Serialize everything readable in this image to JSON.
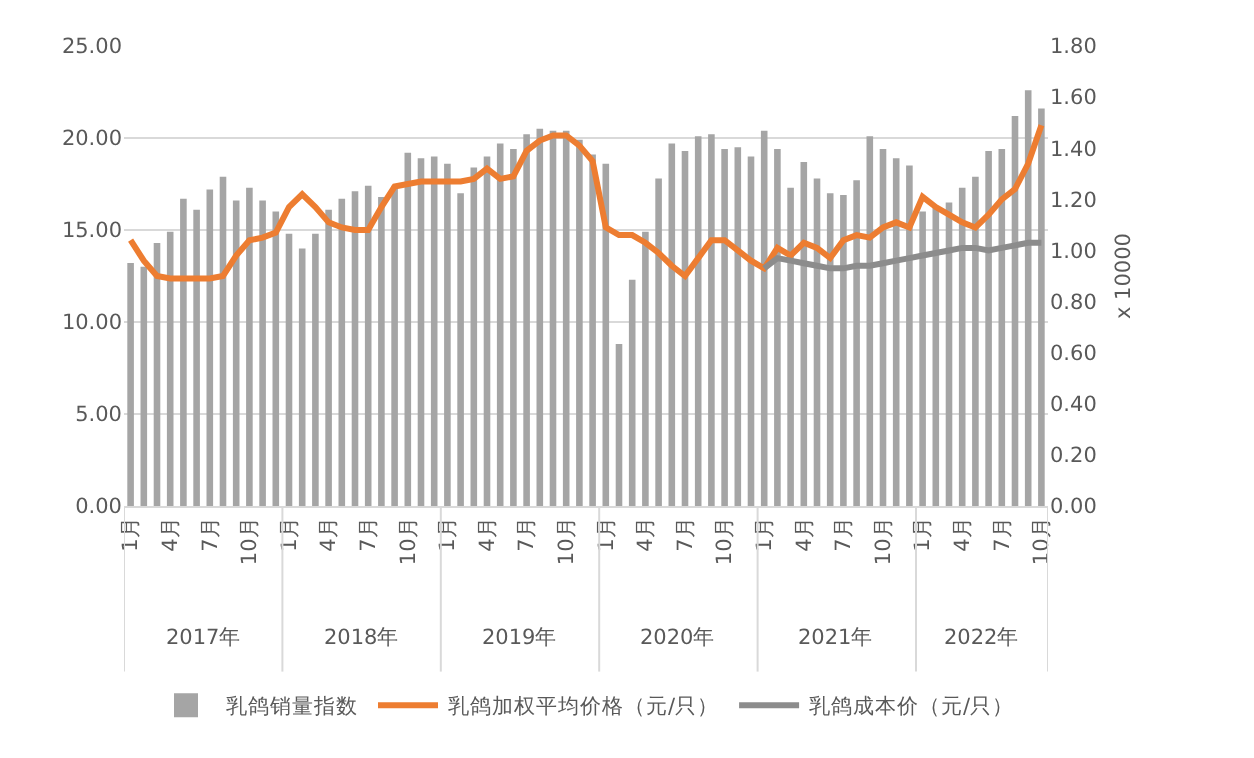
{
  "chart_data": {
    "type": "bar",
    "categories": [
      "1月",
      null,
      null,
      "4月",
      null,
      null,
      "7月",
      null,
      null,
      "10月",
      null,
      null,
      "1月",
      null,
      null,
      "4月",
      null,
      null,
      "7月",
      null,
      null,
      "10月",
      null,
      null,
      "1月",
      null,
      null,
      "4月",
      null,
      null,
      "7月",
      null,
      null,
      "10月",
      null,
      null,
      "1月",
      null,
      null,
      "4月",
      null,
      null,
      "7月",
      null,
      null,
      "10月",
      null,
      null,
      "1月",
      null,
      null,
      "4月",
      null,
      null,
      "7月",
      null,
      null,
      "10月",
      null,
      null,
      "1月",
      null,
      null,
      "4月",
      null,
      null,
      "7月",
      null,
      null,
      "10月"
    ],
    "annotations": [
      "2017年",
      "2018年",
      "2019年",
      "2020年",
      "2021年",
      "2022年"
    ],
    "y2label": "x 10000",
    "series": [
      {
        "name": "乳鸽销量指数",
        "color": "#a5a5a5",
        "values": [
          13.2,
          13.0,
          14.3,
          14.9,
          16.7,
          16.1,
          17.2,
          17.9,
          16.6,
          17.3,
          16.6,
          16.0,
          14.8,
          14.0,
          14.8,
          16.1,
          16.7,
          17.1,
          17.4,
          16.8,
          17.4,
          19.2,
          18.9,
          19.0,
          18.6,
          17.0,
          18.4,
          19.0,
          19.7,
          19.4,
          20.2,
          20.5,
          20.4,
          20.4,
          19.9,
          19.1,
          18.6,
          8.8,
          12.3,
          14.9,
          17.8,
          19.7,
          19.3,
          20.1,
          20.2,
          19.4,
          19.5,
          19.0,
          20.4,
          19.4,
          17.3,
          18.7,
          17.8,
          17.0,
          16.9,
          17.7,
          20.1,
          19.4,
          18.9,
          18.5,
          16.0,
          16.3,
          16.5,
          17.3,
          17.9,
          19.3,
          19.4,
          21.2,
          22.6,
          21.6
        ]
      },
      {
        "name": "乳鸽加权平均价格（元/只）",
        "type": "line",
        "axis": "y2",
        "color": "#ed7d31",
        "values": [
          1.04,
          0.96,
          0.9,
          0.89,
          0.89,
          0.89,
          0.89,
          0.9,
          0.98,
          1.04,
          1.05,
          1.07,
          1.17,
          1.22,
          1.17,
          1.11,
          1.09,
          1.08,
          1.08,
          1.17,
          1.25,
          1.26,
          1.27,
          1.27,
          1.27,
          1.27,
          1.28,
          1.32,
          1.28,
          1.29,
          1.39,
          1.43,
          1.45,
          1.45,
          1.41,
          1.35,
          1.09,
          1.06,
          1.06,
          1.03,
          0.99,
          0.94,
          0.9,
          0.97,
          1.04,
          1.04,
          1.0,
          0.96,
          0.93,
          1.01,
          0.98,
          1.03,
          1.01,
          0.97,
          1.04,
          1.06,
          1.05,
          1.09,
          1.11,
          1.09,
          1.21,
          1.17,
          1.14,
          1.11,
          1.09,
          1.14,
          1.2,
          1.24,
          1.34,
          1.49
        ]
      },
      {
        "name": "乳鸽成本价（元/只）",
        "type": "line",
        "axis": "y2",
        "color": "#8c8c8c",
        "values": [
          null,
          null,
          null,
          null,
          null,
          null,
          null,
          null,
          null,
          null,
          null,
          null,
          null,
          null,
          null,
          null,
          null,
          null,
          null,
          null,
          null,
          null,
          null,
          null,
          null,
          null,
          null,
          null,
          null,
          null,
          null,
          null,
          null,
          null,
          null,
          null,
          null,
          null,
          null,
          null,
          null,
          null,
          null,
          null,
          null,
          null,
          null,
          null,
          0.93,
          0.97,
          0.96,
          0.95,
          0.94,
          0.93,
          0.93,
          0.94,
          0.94,
          0.95,
          0.96,
          0.97,
          0.98,
          0.99,
          1.0,
          1.01,
          1.01,
          1.0,
          1.01,
          1.02,
          1.03,
          1.03
        ]
      }
    ],
    "ylim": [
      0,
      25
    ],
    "yticks": [
      {
        "value": 0,
        "label": "0.00"
      },
      {
        "value": 5,
        "label": "5.00"
      },
      {
        "value": 10,
        "label": "10.00"
      },
      {
        "value": 15,
        "label": "15.00"
      },
      {
        "value": 20,
        "label": "20.00"
      },
      {
        "value": 25,
        "label": "25.00"
      }
    ],
    "y2lim": [
      0,
      1.8
    ],
    "y2ticks": [
      {
        "value": 0,
        "label": "0.00"
      },
      {
        "value": 0.2,
        "label": "0.20"
      },
      {
        "value": 0.4,
        "label": "0.40"
      },
      {
        "value": 0.6,
        "label": "0.60"
      },
      {
        "value": 0.8,
        "label": "0.80"
      },
      {
        "value": 1.0,
        "label": "1.00"
      },
      {
        "value": 1.2,
        "label": "1.20"
      },
      {
        "value": 1.4,
        "label": "1.40"
      },
      {
        "value": 1.6,
        "label": "1.60"
      },
      {
        "value": 1.8,
        "label": "1.80"
      }
    ],
    "grid": "y",
    "legend": "bottom"
  }
}
